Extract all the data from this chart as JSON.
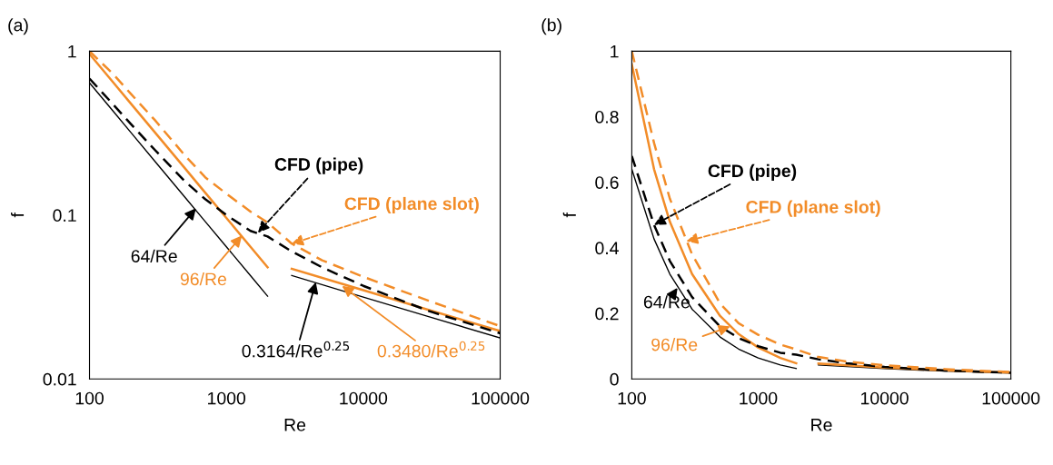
{
  "chart_data": [
    {
      "type": "line",
      "title": "(a)",
      "xlabel": "Re",
      "ylabel": "f",
      "log": "xy",
      "xlim": [
        100,
        100000
      ],
      "xticks": [
        100,
        1000,
        10000,
        100000
      ],
      "ylim": [
        0.01,
        1
      ],
      "yticks": [
        0.01,
        0.1,
        1
      ],
      "grid": false,
      "series": [
        {
          "color": "#000000",
          "line_style": "solid",
          "x": [
            100,
            150,
            200,
            300,
            500,
            700,
            1000,
            1500,
            2000
          ],
          "values": [
            0.64,
            0.427,
            0.32,
            0.213,
            0.128,
            0.0914,
            0.064,
            0.0427,
            0.032
          ]
        },
        {
          "color": "#f28c28",
          "line_style": "solid",
          "x": [
            100,
            150,
            200,
            300,
            500,
            700,
            1000,
            1500,
            2000
          ],
          "values": [
            0.96,
            0.64,
            0.48,
            0.32,
            0.192,
            0.137,
            0.096,
            0.064,
            0.048
          ]
        },
        {
          "color": "#000000",
          "line_style": "solid",
          "x": [
            3000,
            10000,
            30000,
            100000
          ],
          "values": [
            0.0428,
            0.0316,
            0.024,
            0.0178
          ]
        },
        {
          "color": "#f28c28",
          "line_style": "solid",
          "x": [
            3000,
            10000,
            30000,
            100000
          ],
          "values": [
            0.047,
            0.0348,
            0.0264,
            0.0196
          ]
        },
        {
          "color": "#000000",
          "line_style": "dashed",
          "x": [
            100,
            150,
            200,
            300,
            500,
            700,
            1000,
            1500,
            2000,
            3000,
            5000,
            10000,
            30000,
            100000
          ],
          "values": [
            0.68,
            0.47,
            0.36,
            0.25,
            0.16,
            0.125,
            0.1,
            0.08,
            0.074,
            0.06,
            0.048,
            0.037,
            0.026,
            0.019
          ]
        },
        {
          "color": "#f28c28",
          "line_style": "dashed",
          "x": [
            100,
            150,
            200,
            300,
            500,
            700,
            1000,
            1500,
            2000,
            3000,
            5000,
            10000,
            30000,
            100000
          ],
          "values": [
            1.0,
            0.72,
            0.55,
            0.38,
            0.23,
            0.17,
            0.135,
            0.105,
            0.09,
            0.067,
            0.053,
            0.042,
            0.03,
            0.021
          ]
        }
      ],
      "annotations": [
        {
          "text": "CFD (pipe)",
          "x": 1700,
          "y": 0.078
        },
        {
          "text": "CFD (plane slot)",
          "x": 3000,
          "y": 0.067
        },
        {
          "text": "64/Re",
          "x": 600,
          "y": 0.11
        },
        {
          "text": "96/Re",
          "x": 1300,
          "y": 0.075
        },
        {
          "text": "0.3164/Re$^{0.25}$",
          "x": 4500,
          "y": 0.039
        },
        {
          "text": "0.3480/Re$^{0.25}$",
          "x": 7000,
          "y": 0.037
        }
      ]
    },
    {
      "type": "line",
      "title": "(b)",
      "xlabel": "Re",
      "ylabel": "f",
      "log": "x",
      "xlim": [
        100,
        100000
      ],
      "xticks": [
        100,
        1000,
        10000,
        100000
      ],
      "ylim": [
        0,
        1
      ],
      "yticks": [
        0,
        0.2,
        0.4,
        0.6,
        0.8,
        1
      ],
      "grid": false,
      "series": [
        {
          "color": "#000000",
          "line_style": "solid",
          "x": [
            100,
            150,
            200,
            300,
            500,
            700,
            1000,
            1500,
            2000
          ],
          "values": [
            0.64,
            0.427,
            0.32,
            0.213,
            0.128,
            0.0914,
            0.064,
            0.0427,
            0.032
          ]
        },
        {
          "color": "#f28c28",
          "line_style": "solid",
          "x": [
            100,
            150,
            200,
            300,
            500,
            700,
            1000,
            1500,
            2000
          ],
          "values": [
            0.96,
            0.64,
            0.48,
            0.32,
            0.192,
            0.137,
            0.096,
            0.064,
            0.048
          ]
        },
        {
          "color": "#000000",
          "line_style": "solid",
          "x": [
            3000,
            10000,
            30000,
            100000
          ],
          "values": [
            0.0428,
            0.0316,
            0.024,
            0.0178
          ]
        },
        {
          "color": "#f28c28",
          "line_style": "solid",
          "x": [
            3000,
            10000,
            30000,
            100000
          ],
          "values": [
            0.047,
            0.0348,
            0.0264,
            0.0196
          ]
        },
        {
          "color": "#000000",
          "line_style": "dashed",
          "x": [
            100,
            150,
            200,
            300,
            500,
            700,
            1000,
            1500,
            2000,
            3000,
            5000,
            10000,
            30000,
            100000
          ],
          "values": [
            0.68,
            0.47,
            0.36,
            0.25,
            0.16,
            0.125,
            0.1,
            0.08,
            0.074,
            0.06,
            0.048,
            0.037,
            0.026,
            0.019
          ]
        },
        {
          "color": "#f28c28",
          "line_style": "dashed",
          "x": [
            100,
            150,
            200,
            300,
            500,
            700,
            1000,
            1500,
            2000,
            3000,
            5000,
            10000,
            30000,
            100000
          ],
          "values": [
            1.0,
            0.72,
            0.55,
            0.38,
            0.23,
            0.17,
            0.135,
            0.105,
            0.09,
            0.067,
            0.053,
            0.042,
            0.03,
            0.021
          ]
        }
      ],
      "annotations": [
        {
          "text": "CFD (pipe)",
          "x": 150,
          "y": 0.47
        },
        {
          "text": "CFD (plane slot)",
          "x": 270,
          "y": 0.42
        },
        {
          "text": "64/Re",
          "x": 230,
          "y": 0.278
        },
        {
          "text": "96/Re",
          "x": 600,
          "y": 0.16
        }
      ]
    }
  ]
}
